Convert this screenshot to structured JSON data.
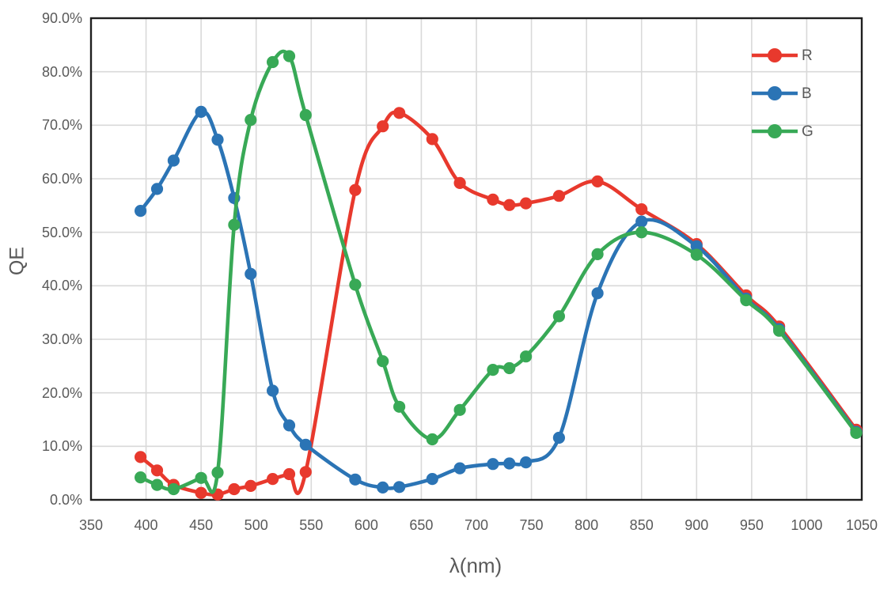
{
  "chart_data": {
    "type": "line",
    "title": "",
    "xlabel": "λ(nm)",
    "ylabel": "QE",
    "xlim": [
      350,
      1050
    ],
    "ylim": [
      0,
      90
    ],
    "grid": true,
    "legend_position": "top-right",
    "x_ticks": [
      350,
      400,
      450,
      500,
      550,
      600,
      650,
      700,
      750,
      800,
      850,
      900,
      950,
      1000,
      1050
    ],
    "x_tick_labels": [
      "350",
      "400",
      "450",
      "500",
      "550",
      "600",
      "650",
      "700",
      "750",
      "800",
      "850",
      "900",
      "950",
      "1000",
      "1050"
    ],
    "y_ticks": [
      0,
      10,
      20,
      30,
      40,
      50,
      60,
      70,
      80,
      90
    ],
    "y_tick_labels": [
      "0.0%",
      "10.0%",
      "20.0%",
      "30.0%",
      "40.0%",
      "50.0%",
      "60.0%",
      "70.0%",
      "80.0%",
      "90.0%"
    ],
    "x": [
      395,
      410,
      425,
      450,
      465,
      480,
      495,
      515,
      530,
      545,
      590,
      615,
      630,
      660,
      685,
      715,
      730,
      745,
      775,
      810,
      850,
      900,
      945,
      975,
      1045
    ],
    "series": [
      {
        "name": "R",
        "color": "#E8392D",
        "values": [
          8.0,
          5.5,
          2.8,
          1.3,
          1.0,
          2.0,
          2.6,
          3.9,
          4.8,
          5.2,
          57.9,
          69.8,
          72.3,
          67.4,
          59.2,
          56.1,
          55.1,
          55.4,
          56.8,
          59.5,
          54.3,
          47.8,
          38.2,
          32.4,
          13.1
        ]
      },
      {
        "name": "B",
        "color": "#2B74B5",
        "values": [
          54.0,
          58.1,
          63.4,
          72.5,
          67.3,
          56.4,
          42.2,
          20.4,
          13.9,
          10.3,
          3.8,
          2.3,
          2.4,
          3.9,
          5.9,
          6.7,
          6.8,
          7.0,
          11.6,
          38.6,
          52.0,
          47.4,
          37.6,
          31.9,
          12.7
        ]
      },
      {
        "name": "G",
        "color": "#38A956",
        "values": [
          4.2,
          2.8,
          2.0,
          4.1,
          5.1,
          51.4,
          71.0,
          81.8,
          82.9,
          71.9,
          40.2,
          25.9,
          17.4,
          11.3,
          16.8,
          24.3,
          24.6,
          26.8,
          34.3,
          45.9,
          50.0,
          45.8,
          37.3,
          31.6,
          12.5
        ]
      }
    ],
    "colors": {
      "grid": "#D9D9D9",
      "border": "#1F1F1F",
      "tick_text": "#595959",
      "axis_title_text": "#595959",
      "background": "#FFFFFF"
    }
  }
}
